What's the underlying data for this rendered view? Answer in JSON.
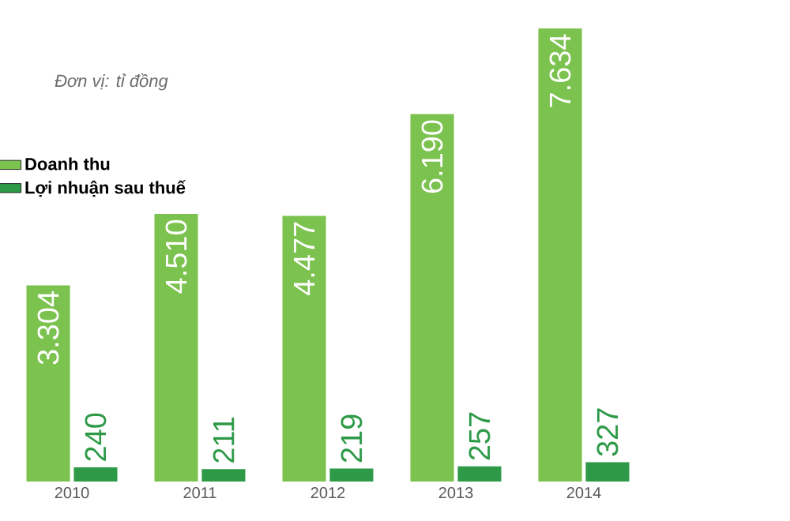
{
  "chart_data": {
    "type": "bar",
    "subtitle": "Đơn vị: tỉ đồng",
    "categories": [
      "2010",
      "2011",
      "2012",
      "2013",
      "2014"
    ],
    "series": [
      {
        "name": "Doanh thu",
        "color": "#7cc24f",
        "values": [
          3304,
          4510,
          4477,
          6190,
          7634
        ],
        "value_labels": [
          "3.304",
          "4.510",
          "4.477",
          "6.190",
          "7.634"
        ]
      },
      {
        "name": "Lợi nhuận sau thuế",
        "color": "#2e9a48",
        "values": [
          240,
          211,
          219,
          257,
          327
        ],
        "value_labels": [
          "240",
          "211",
          "219",
          "257",
          "327"
        ]
      }
    ],
    "legend": "top left"
  }
}
